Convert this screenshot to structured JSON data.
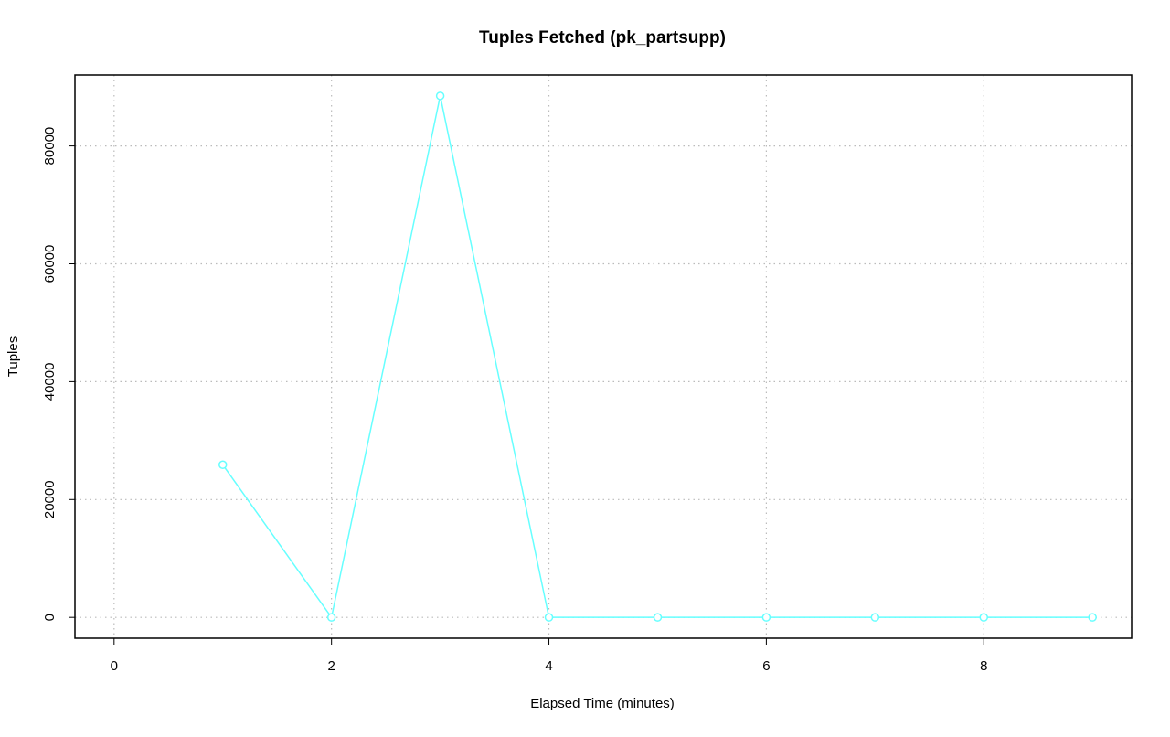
{
  "chart_data": {
    "type": "line",
    "title": "Tuples Fetched (pk_partsupp)",
    "x_label": "Elapsed Time (minutes)",
    "y_label": "Tuples",
    "x": [
      1,
      2,
      3,
      4,
      5,
      6,
      7,
      8,
      9
    ],
    "values": [
      25900,
      0,
      88500,
      0,
      0,
      0,
      0,
      0,
      0
    ],
    "color": "#66ffff",
    "xlim": [
      -0.36,
      9.36
    ],
    "xticks": [
      0,
      2,
      4,
      6,
      8
    ],
    "ylim": [
      -3540,
      92040
    ],
    "yticks": [
      0,
      20000,
      40000,
      60000,
      80000
    ],
    "grid": true
  }
}
